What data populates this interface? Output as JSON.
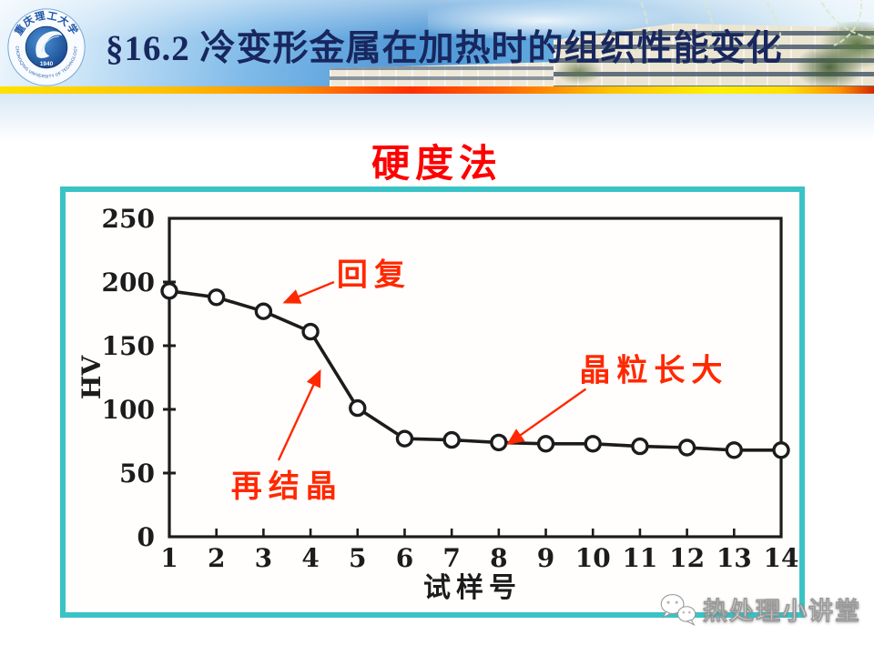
{
  "colors": {
    "accent": "#3ac3c6",
    "heading_red": "#fe0000",
    "annotation_red": "#ff2800",
    "header_navy": "#18275e"
  },
  "header": {
    "title": "§16.2 冷变形金属在加热时的组织性能变化",
    "logo": {
      "name_zh": "重庆理工大学",
      "name_en": "CHONGQING UNIVERSITY OF TECHNOLOGY",
      "year": "1940"
    }
  },
  "main": {
    "section_title": "硬度法"
  },
  "chart_data": {
    "type": "line",
    "title": "硬度法",
    "xlabel": "试样号",
    "ylabel": "HV",
    "x": [
      1,
      2,
      3,
      4,
      5,
      6,
      7,
      8,
      9,
      10,
      11,
      12,
      13,
      14
    ],
    "values": [
      193,
      188,
      177,
      161,
      101,
      77,
      76,
      74,
      73,
      73,
      71,
      70,
      68,
      68
    ],
    "xlim": [
      1,
      14
    ],
    "ylim": [
      0,
      250
    ],
    "yticks": [
      0,
      50,
      100,
      150,
      200,
      250
    ],
    "grid": false,
    "legend": null,
    "marker": "open-circle",
    "annotations": [
      {
        "label": "回复",
        "label_at": [
          5.35,
          206
        ],
        "arrow_from": [
          4.5,
          200
        ],
        "arrow_to": [
          3.45,
          184
        ]
      },
      {
        "label": "再结晶",
        "label_at": [
          3.5,
          40
        ],
        "arrow_from": [
          3.32,
          60
        ],
        "arrow_to": [
          4.2,
          130
        ]
      },
      {
        "label": "晶粒长大",
        "label_at": [
          11.3,
          131
        ],
        "arrow_from": [
          9.85,
          116
        ],
        "arrow_to": [
          8.2,
          73
        ]
      }
    ],
    "colors": {
      "ink": "#1c1c1c",
      "annotation": "#ff2800"
    }
  },
  "footer": {
    "watermark": "热处理小讲堂"
  }
}
